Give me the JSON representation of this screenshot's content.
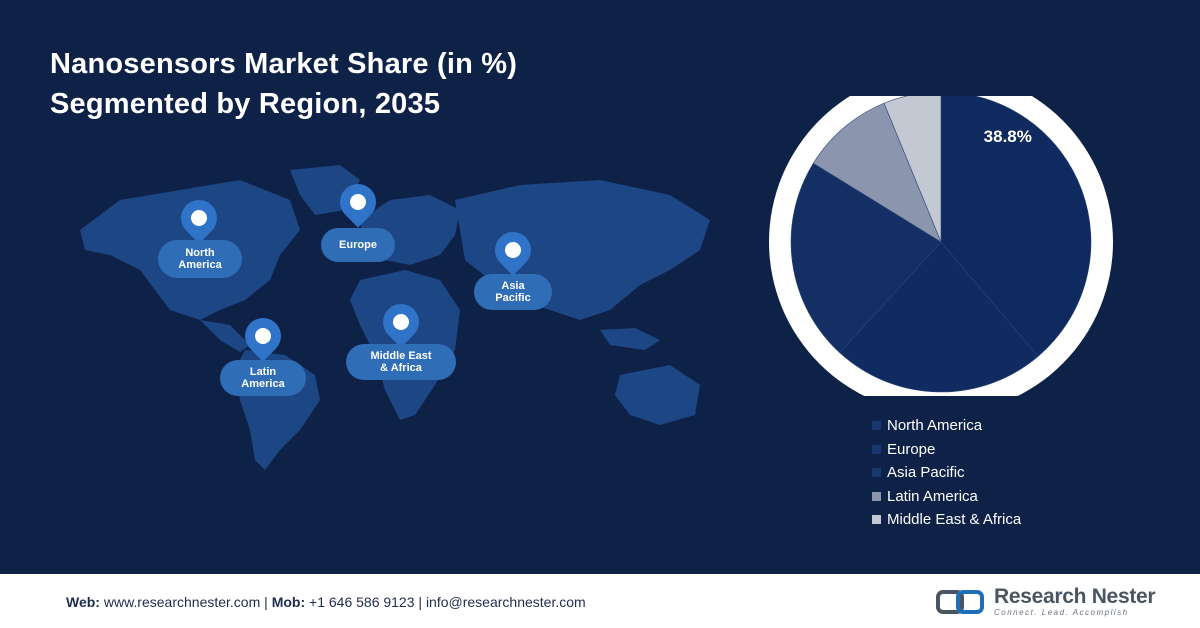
{
  "title": {
    "line1": "Nanosensors Market Share (in %)",
    "line2": "Segmented by Region, 2035"
  },
  "map_labels": [
    {
      "line1": "North",
      "line2": "America"
    },
    {
      "line1": "Europe",
      "line2": ""
    },
    {
      "line1": "Asia",
      "line2": "Pacific"
    },
    {
      "line1": "Latin",
      "line2": "America"
    },
    {
      "line1": "Middle East",
      "line2": "& Africa"
    }
  ],
  "chart_data": {
    "type": "pie",
    "title": "Nanosensors Market Share (in %) Segmented by Region, 2035",
    "unit": "%",
    "slices": [
      {
        "label": "North America",
        "value": 38.8,
        "color": "#0e2a5e",
        "data_label": "38.8%"
      },
      {
        "label": "Europe",
        "value": 23.0,
        "color": "#0f2b5f",
        "data_label": ""
      },
      {
        "label": "Asia Pacific",
        "value": 22.0,
        "color": "#142f63",
        "data_label": ""
      },
      {
        "label": "Latin America",
        "value": 10.0,
        "color": "#8b96ae",
        "data_label": ""
      },
      {
        "label": "Middle East & Africa",
        "value": 6.2,
        "color": "#c3c8d3",
        "data_label": ""
      }
    ],
    "legend_position": "bottom"
  },
  "footer": {
    "web_label": "Web:",
    "web_value": "www.researchnester.com",
    "sep1": "|",
    "mob_label": "Mob:",
    "mob_value": "+1 646 586 9123",
    "sep2": "|",
    "email": "info@researchnester.com"
  },
  "logo": {
    "name": "Research Nester",
    "tagline": "Connect. Lead. Accomplish"
  },
  "colors": {
    "background": "#0e2247",
    "pin": "#2f74c8",
    "label_pill": "#2f6db7"
  }
}
